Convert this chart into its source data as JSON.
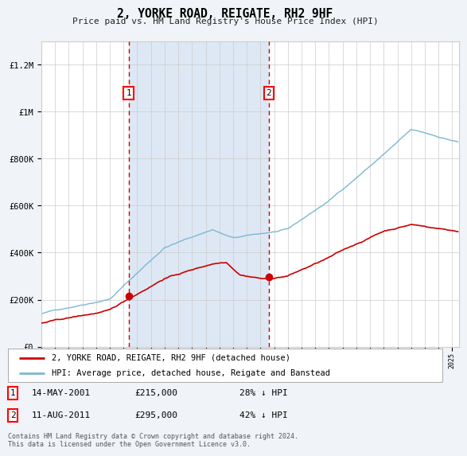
{
  "title": "2, YORKE ROAD, REIGATE, RH2 9HF",
  "subtitle": "Price paid vs. HM Land Registry's House Price Index (HPI)",
  "background_color": "#f0f4f8",
  "plot_bg_color": "#ffffff",
  "grid_color": "#cccccc",
  "hpi_color": "#7ab8d4",
  "price_color": "#cc0000",
  "highlight_bg": "#dde8f4",
  "sale1_date": 2001.37,
  "sale1_price": 215000,
  "sale2_date": 2011.61,
  "sale2_price": 295000,
  "xmin": 1995,
  "xmax": 2025.5,
  "ymin": 0,
  "ymax": 1300000,
  "legend_hpi_label": "HPI: Average price, detached house, Reigate and Banstead",
  "legend_price_label": "2, YORKE ROAD, REIGATE, RH2 9HF (detached house)",
  "note1_label": "1",
  "note1_date": "14-MAY-2001",
  "note1_price": "£215,000",
  "note1_pct": "28% ↓ HPI",
  "note2_label": "2",
  "note2_date": "11-AUG-2011",
  "note2_price": "£295,000",
  "note2_pct": "42% ↓ HPI",
  "footer": "Contains HM Land Registry data © Crown copyright and database right 2024.\nThis data is licensed under the Open Government Licence v3.0."
}
